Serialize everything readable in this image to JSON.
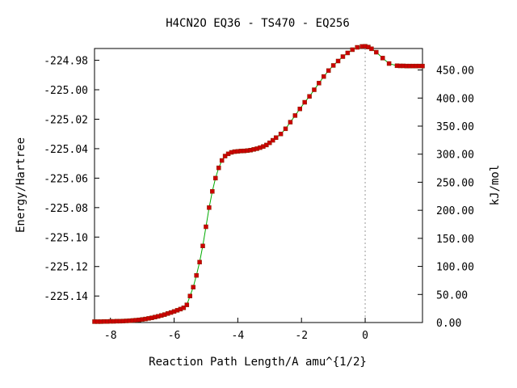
{
  "chart_data": {
    "type": "line",
    "title": "H4CN2O   EQ36 - TS470 - EQ256",
    "xlabel": "Reaction Path Length/A amu^{1/2}",
    "ylabel": "Energy/Hartree",
    "y2label": "kJ/mol",
    "xlim": [
      -8.5,
      1.8
    ],
    "ylim": [
      -225.158,
      -224.972
    ],
    "y2lim": [
      0,
      488.3
    ],
    "x_ticks": [
      -8,
      -6,
      -4,
      -2,
      0
    ],
    "x_tick_labels": [
      "-8",
      "-6",
      "-4",
      "-2",
      "0"
    ],
    "y_ticks": [
      -224.98,
      -225.0,
      -225.02,
      -225.04,
      -225.06,
      -225.08,
      -225.1,
      -225.12,
      -225.14
    ],
    "y_tick_labels": [
      "-224.98",
      "-225.00",
      "-225.02",
      "-225.04",
      "-225.06",
      "-225.08",
      "-225.10",
      "-225.12",
      "-225.14"
    ],
    "y2_ticks": [
      0,
      50,
      100,
      150,
      200,
      250,
      300,
      350,
      400,
      450
    ],
    "y2_tick_labels": [
      "0.00",
      "50.00",
      "100.00",
      "150.00",
      "200.00",
      "250.00",
      "300.00",
      "350.00",
      "400.00",
      "450.00"
    ],
    "ts_marker_x": 0,
    "line_color": "#00aa00",
    "marker_color": "#cc0000",
    "series": [
      {
        "x": [
          -8.5,
          -8.4,
          -8.3,
          -8.2,
          -8.1,
          -8.0,
          -7.9,
          -7.8,
          -7.7,
          -7.6,
          -7.5,
          -7.4,
          -7.3,
          -7.2,
          -7.1,
          -7.0,
          -6.9,
          -6.8,
          -6.7,
          -6.6,
          -6.5,
          -6.4,
          -6.3,
          -6.2,
          -6.1,
          -6.0,
          -5.9,
          -5.8,
          -5.7,
          -5.6,
          -5.5,
          -5.4,
          -5.3,
          -5.2,
          -5.1,
          -5.0,
          -4.9,
          -4.8,
          -4.7,
          -4.6,
          -4.5,
          -4.4,
          -4.3,
          -4.2,
          -4.1,
          -4.0,
          -3.9,
          -3.8,
          -3.7,
          -3.6,
          -3.5,
          -3.4,
          -3.3,
          -3.2,
          -3.1,
          -3.0,
          -2.9,
          -2.8,
          -2.65,
          -2.5,
          -2.35,
          -2.2,
          -2.05,
          -1.9,
          -1.75,
          -1.6,
          -1.45,
          -1.3,
          -1.15,
          -1.0,
          -0.85,
          -0.7,
          -0.55,
          -0.4,
          -0.25,
          -0.1,
          0.0,
          0.1,
          0.2,
          0.35,
          0.55,
          0.75,
          1.0,
          1.1,
          1.2,
          1.3,
          1.4,
          1.5,
          1.6,
          1.7,
          1.8
        ],
        "y": [
          -225.1574,
          -225.1574,
          -225.1574,
          -225.1573,
          -225.1573,
          -225.1572,
          -225.1572,
          -225.1571,
          -225.1571,
          -225.157,
          -225.1569,
          -225.1568,
          -225.1566,
          -225.1564,
          -225.1562,
          -225.1559,
          -225.1556,
          -225.1552,
          -225.1548,
          -225.1543,
          -225.1538,
          -225.1532,
          -225.1526,
          -225.1519,
          -225.1512,
          -225.1505,
          -225.1497,
          -225.1489,
          -225.148,
          -225.146,
          -225.14,
          -225.134,
          -225.126,
          -225.117,
          -225.106,
          -225.093,
          -225.08,
          -225.069,
          -225.06,
          -225.053,
          -225.048,
          -225.045,
          -225.0435,
          -225.0425,
          -225.042,
          -225.0418,
          -225.0416,
          -225.0415,
          -225.0413,
          -225.041,
          -225.0405,
          -225.04,
          -225.0393,
          -225.0385,
          -225.0375,
          -225.036,
          -225.0343,
          -225.0325,
          -225.03,
          -225.0265,
          -225.022,
          -225.0175,
          -225.013,
          -225.0085,
          -225.0045,
          -225.0,
          -224.9955,
          -224.991,
          -224.987,
          -224.9835,
          -224.9805,
          -224.9775,
          -224.975,
          -224.9728,
          -224.9712,
          -224.9706,
          -224.9705,
          -224.971,
          -224.9722,
          -224.9745,
          -224.9785,
          -224.9822,
          -224.9837,
          -224.9838,
          -224.9838,
          -224.9839,
          -224.9839,
          -224.9839,
          -224.9839,
          -224.9839,
          -224.9839
        ]
      }
    ]
  }
}
